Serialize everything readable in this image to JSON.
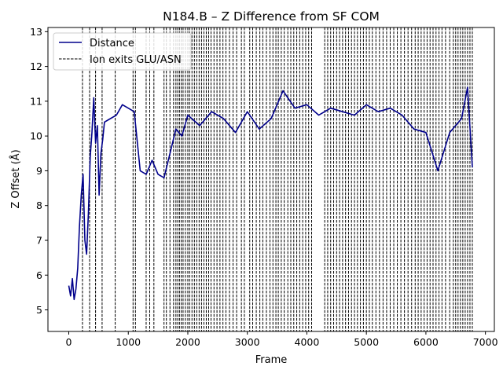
{
  "chart_data": {
    "type": "line",
    "title": "N184.B – Z Difference from SF COM",
    "xlabel": "Frame",
    "ylabel": "Z Offset (Å)",
    "xlim": [
      -350,
      7150
    ],
    "ylim": [
      4.38,
      13.12
    ],
    "xticks": [
      0,
      1000,
      2000,
      3000,
      4000,
      5000,
      6000,
      7000
    ],
    "yticks": [
      5,
      6,
      7,
      8,
      9,
      10,
      11,
      12,
      13
    ],
    "grid": false,
    "legend_position": "top-left",
    "series": [
      {
        "name": "Distance",
        "color": "#00008b",
        "x": [
          0,
          30,
          60,
          90,
          120,
          150,
          180,
          210,
          240,
          270,
          300,
          330,
          360,
          390,
          420,
          450,
          480,
          510,
          540,
          570,
          600,
          700,
          800,
          900,
          1000,
          1100,
          1200,
          1300,
          1400,
          1500,
          1600,
          1700,
          1800,
          1900,
          2000,
          2200,
          2400,
          2600,
          2800,
          3000,
          3200,
          3400,
          3600,
          3800,
          4000,
          4200,
          4400,
          4600,
          4800,
          5000,
          5200,
          5400,
          5600,
          5800,
          6000,
          6200,
          6400,
          6600,
          6700,
          6780
        ],
        "y": [
          5.7,
          5.4,
          5.9,
          5.3,
          5.6,
          6.2,
          7.4,
          8.3,
          8.9,
          7.0,
          6.6,
          7.8,
          9.4,
          10.1,
          11.1,
          9.8,
          10.3,
          8.3,
          9.5,
          9.9,
          10.4,
          10.5,
          10.6,
          10.9,
          10.8,
          10.7,
          9.0,
          8.9,
          9.3,
          8.9,
          8.8,
          9.5,
          10.2,
          10.0,
          10.6,
          10.3,
          10.7,
          10.5,
          10.1,
          10.7,
          10.2,
          10.5,
          11.3,
          10.8,
          10.9,
          10.6,
          10.8,
          10.7,
          10.6,
          10.9,
          10.7,
          10.8,
          10.6,
          10.2,
          10.1,
          9.0,
          10.1,
          10.5,
          11.4,
          9.1
        ]
      }
    ],
    "event_lines": {
      "name": "Ion exits GLU/ASN",
      "color": "#000000",
      "x": [
        230,
        350,
        450,
        560,
        780,
        1080,
        1120,
        1300,
        1360,
        1430,
        1600,
        1640,
        1700,
        1760,
        1800,
        1830,
        1860,
        1890,
        1920,
        1960,
        2000,
        2030,
        2070,
        2110,
        2150,
        2190,
        2230,
        2270,
        2310,
        2350,
        2390,
        2440,
        2490,
        2540,
        2590,
        2640,
        2700,
        2760,
        2820,
        2900,
        2950,
        3040,
        3090,
        3150,
        3210,
        3260,
        3320,
        3380,
        3430,
        3480,
        3520,
        3570,
        3620,
        3680,
        3730,
        3780,
        3830,
        3880,
        3930,
        3980,
        4030,
        4080,
        4300,
        4350,
        4400,
        4450,
        4500,
        4550,
        4600,
        4650,
        4700,
        4750,
        4800,
        4850,
        4900,
        4950,
        5000,
        5050,
        5100,
        5160,
        5220,
        5280,
        5340,
        5400,
        5460,
        5520,
        5580,
        5640,
        5700,
        5760,
        5820,
        5870,
        5920,
        5970,
        6020,
        6070,
        6120,
        6170,
        6220,
        6270,
        6330,
        6400,
        6460,
        6500,
        6540,
        6580,
        6620,
        6660,
        6700,
        6740,
        6780
      ]
    }
  }
}
